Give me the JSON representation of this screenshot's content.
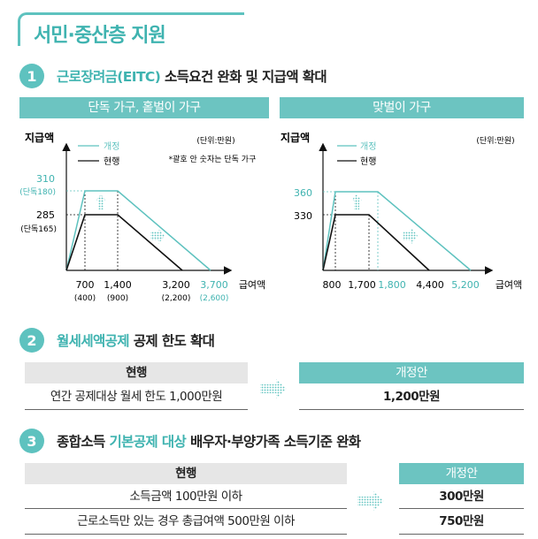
{
  "page_title": "서민·중산층 지원",
  "section1": {
    "num": "1",
    "title_highlight": "근로장려금(EITC)",
    "title_rest": " 소득요건 완화 및 지급액 확대",
    "single": {
      "header": "단독 가구, 홑벌이 가구",
      "ylabel": "지급액",
      "unit": "(단위:만원)",
      "note": "*괄호 안 숫자는 단독 가구",
      "legend_new": "개정",
      "legend_cur": "현행",
      "y_new": "310",
      "y_new_sub": "(단독180)",
      "y_cur": "285",
      "y_cur_sub": "(단독165)",
      "x1": "700",
      "x1_sub": "(400)",
      "x2": "1,400",
      "x2_sub": "(900)",
      "x3": "3,200",
      "x3_sub": "(2,200)",
      "x4": "3,700",
      "x4_sub": "(2,600)",
      "xlabel": "급여액"
    },
    "dual": {
      "header": "맞벌이 가구",
      "ylabel": "지급액",
      "unit": "(단위:만원)",
      "legend_new": "개정",
      "legend_cur": "현행",
      "y_new": "360",
      "y_cur": "330",
      "x1": "800",
      "x2": "1,700",
      "x3": "1,800",
      "x4": "4,400",
      "x5": "5,200",
      "xlabel": "급여액"
    }
  },
  "section2": {
    "num": "2",
    "title_highlight": "월세세액공제",
    "title_rest": " 공제 한도 확대",
    "cur_header": "현행",
    "new_header": "개정안",
    "cur_value": "연간 공제대상 월세 한도 1,000만원",
    "new_value": "1,200만원"
  },
  "section3": {
    "num": "3",
    "title_a": "종합소득 ",
    "title_highlight": "기본공제 대상",
    "title_rest": " 배우자·부양가족 소득기준 완화",
    "cur_header": "현행",
    "new_header": "개정안",
    "rows": [
      {
        "cur": "소득금액 100만원 이하",
        "new": "300만원"
      },
      {
        "cur": "근로소득만 있는 경우 총급여액 500만원 이하",
        "new": "750만원"
      }
    ]
  },
  "colors": {
    "accent": "#5ec2bf",
    "current_line": "#111111",
    "header_gray": "#e6e6e6"
  }
}
